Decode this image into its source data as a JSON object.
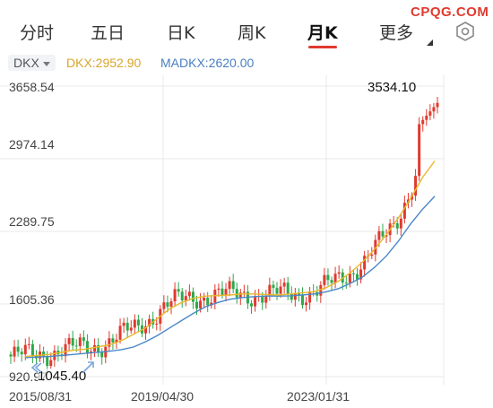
{
  "tabs": {
    "items": [
      "分时",
      "五日",
      "日K",
      "周K",
      "月K",
      "更多"
    ],
    "active_index": 4
  },
  "watermark": "CPQG.COM",
  "indicator": {
    "name": "DKX",
    "dkx_label": "DKX:2952.90",
    "madkx_label": "MADKX:2620.00"
  },
  "colors": {
    "up": "#e03a2f",
    "down": "#2ea84a",
    "dkx": "#e8b82a",
    "madkx": "#4a87c8",
    "grid": "#e8e8e8"
  },
  "chart_data": {
    "type": "line",
    "y_ticks": [
      "3658.54",
      "2974.14",
      "2289.75",
      "1605.36",
      "920.97"
    ],
    "ylim": [
      920.97,
      3658.54
    ],
    "x_ticks": [
      "2015/08/31",
      "2019/04/30",
      "2023/01/31"
    ],
    "max_label": "3534.10",
    "min_label": "1045.40",
    "series": [
      {
        "name": "DKX",
        "values": [
          1110,
          1120,
          1130,
          1150,
          1170,
          1180,
          1200,
          1220,
          1260,
          1320,
          1380,
          1470,
          1560,
          1620,
          1660,
          1680,
          1685,
          1690,
          1700,
          1700,
          1695,
          1690,
          1700,
          1710,
          1720,
          1760,
          1820,
          1900,
          2000,
          2120,
          2260,
          2420,
          2600,
          2800,
          2952.9
        ]
      },
      {
        "name": "MADKX",
        "values": [
          1100,
          1105,
          1110,
          1120,
          1130,
          1140,
          1150,
          1160,
          1175,
          1200,
          1250,
          1310,
          1380,
          1450,
          1520,
          1580,
          1620,
          1650,
          1665,
          1675,
          1680,
          1680,
          1682,
          1690,
          1700,
          1720,
          1750,
          1800,
          1860,
          1950,
          2060,
          2200,
          2360,
          2500,
          2620
        ]
      }
    ]
  }
}
